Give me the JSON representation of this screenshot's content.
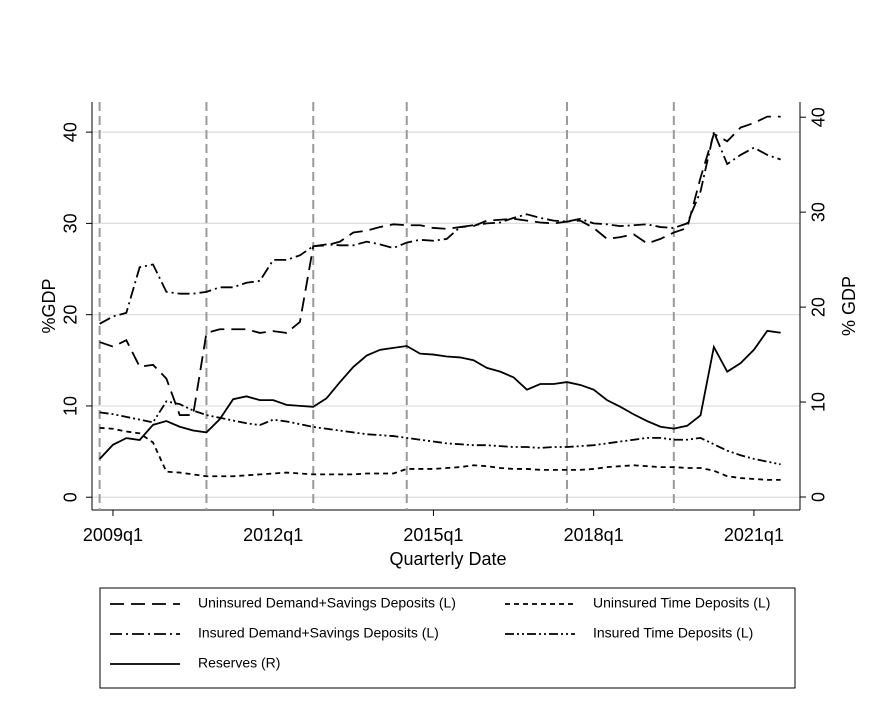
{
  "chart_data": {
    "type": "line",
    "xlabel": "Quarterly Date",
    "ylabel": "%GDP",
    "y2label": "% GDP",
    "x": [
      195,
      196,
      197,
      198,
      199,
      200,
      201,
      202,
      203,
      204,
      205,
      206,
      207,
      208,
      209,
      210,
      211,
      212,
      213,
      214,
      215,
      216,
      217,
      218,
      219,
      220,
      221,
      222,
      223,
      224,
      225,
      226,
      227,
      228,
      229,
      230,
      231,
      232,
      233,
      234,
      235,
      236,
      237,
      238,
      239,
      240,
      241,
      242,
      243,
      244,
      245,
      246
    ],
    "xlim": [
      194.43,
      247.45
    ],
    "xticks": [
      {
        "value": 196,
        "label": "2009q1"
      },
      {
        "value": 208,
        "label": "2012q1"
      },
      {
        "value": 220,
        "label": "2015q1"
      },
      {
        "value": 232,
        "label": "2018q1"
      },
      {
        "value": 244,
        "label": "2021q1"
      }
    ],
    "ylim": [
      -1.4,
      43.3
    ],
    "yticks": [
      0,
      10,
      20,
      30,
      40
    ],
    "y2lim": [
      -1.37,
      41.6
    ],
    "y2ticks": [
      0,
      10,
      20,
      30,
      40
    ],
    "grid": true,
    "vlines": [
      195,
      203,
      211,
      218,
      230,
      238
    ],
    "legend": "bottom",
    "series": [
      {
        "name": "Uninsured Demand+Savings Deposits (L)",
        "color": "#000000",
        "dash": "long-dash",
        "values": [
          17.0,
          16.5,
          17.2,
          14.3,
          14.5,
          13.0,
          9.0,
          9.0,
          18.0,
          18.4,
          18.4,
          18.4,
          18.0,
          18.2,
          18.0,
          19.2,
          27.5,
          27.6,
          28.0,
          29.0,
          29.2,
          29.6,
          29.9,
          29.8,
          29.8,
          29.5,
          29.4,
          29.6,
          29.7,
          30.3,
          30.4,
          30.5,
          30.3,
          30.1,
          30.0,
          30.2,
          30.3,
          29.5,
          28.3,
          28.5,
          28.8,
          27.8,
          28.3,
          29.0,
          29.5,
          35.0,
          39.8,
          39.0,
          40.5,
          41.0,
          41.7,
          41.7
        ]
      },
      {
        "name": "Uninsured Time Deposits (L)",
        "color": "#000000",
        "dash": "short-dash",
        "values": [
          7.6,
          7.5,
          7.2,
          7.0,
          6.0,
          2.8,
          2.7,
          2.5,
          2.3,
          2.3,
          2.3,
          2.4,
          2.5,
          2.6,
          2.7,
          2.6,
          2.5,
          2.5,
          2.5,
          2.5,
          2.6,
          2.6,
          2.6,
          3.1,
          3.1,
          3.1,
          3.2,
          3.3,
          3.5,
          3.4,
          3.2,
          3.1,
          3.1,
          3.0,
          3.0,
          3.0,
          3.0,
          3.1,
          3.3,
          3.4,
          3.5,
          3.4,
          3.3,
          3.3,
          3.2,
          3.2,
          2.9,
          2.3,
          2.1,
          2.0,
          1.9,
          1.9
        ]
      },
      {
        "name": "Insured Demand+Savings Deposits (L)",
        "color": "#000000",
        "dash": "dash-dot",
        "values": [
          19.0,
          19.8,
          20.2,
          25.2,
          25.5,
          22.5,
          22.3,
          22.3,
          22.5,
          23.0,
          23.0,
          23.5,
          23.7,
          26.0,
          26.0,
          26.5,
          27.5,
          27.7,
          27.6,
          27.6,
          28.0,
          27.7,
          27.3,
          27.9,
          28.2,
          28.1,
          28.3,
          29.6,
          29.8,
          30.0,
          30.1,
          30.6,
          31.0,
          30.6,
          30.3,
          30.2,
          30.5,
          30.0,
          29.9,
          29.7,
          29.8,
          29.9,
          29.6,
          29.5,
          30.0,
          33.5,
          40.0,
          36.5,
          37.5,
          38.3,
          37.5,
          37.0
        ]
      },
      {
        "name": "Insured Time Deposits (L)",
        "color": "#000000",
        "dash": "dash-dot-dot",
        "values": [
          9.3,
          9.1,
          8.8,
          8.5,
          8.2,
          10.5,
          10.2,
          9.5,
          9.0,
          8.7,
          8.4,
          8.1,
          7.9,
          8.5,
          8.3,
          8.0,
          7.7,
          7.5,
          7.3,
          7.1,
          6.9,
          6.8,
          6.7,
          6.5,
          6.3,
          6.1,
          5.9,
          5.8,
          5.7,
          5.7,
          5.6,
          5.5,
          5.5,
          5.4,
          5.5,
          5.5,
          5.6,
          5.7,
          5.9,
          6.1,
          6.3,
          6.5,
          6.5,
          6.3,
          6.3,
          6.5,
          5.8,
          5.1,
          4.6,
          4.2,
          3.9,
          3.6
        ]
      },
      {
        "name": "Reserves (R)",
        "color": "#000000",
        "dash": "solid",
        "axis": "y2",
        "values": [
          4.0,
          5.5,
          6.2,
          6.0,
          7.6,
          8.0,
          7.4,
          7.0,
          6.8,
          8.2,
          10.3,
          10.6,
          10.2,
          10.2,
          9.7,
          9.6,
          9.5,
          10.4,
          12.1,
          13.7,
          14.9,
          15.5,
          15.7,
          15.9,
          15.1,
          15.0,
          14.8,
          14.7,
          14.4,
          13.6,
          13.2,
          12.6,
          11.3,
          11.9,
          11.9,
          12.1,
          11.8,
          11.3,
          10.2,
          9.5,
          8.7,
          8.0,
          7.4,
          7.2,
          7.5,
          8.6,
          15.8,
          13.2,
          14.1,
          15.5,
          17.5,
          17.3
        ]
      }
    ]
  }
}
